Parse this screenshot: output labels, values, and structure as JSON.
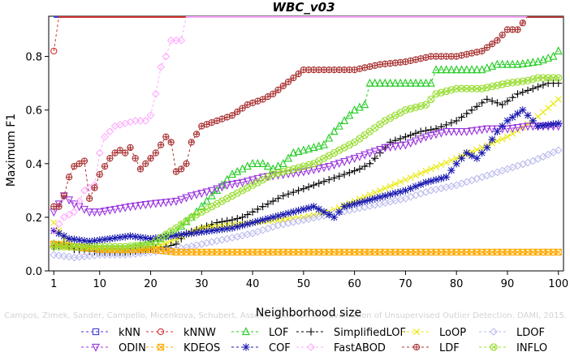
{
  "chart_data": {
    "type": "line",
    "title": "WBC_v03",
    "xlabel": "Neighborhood size",
    "ylabel": "Maximum F1",
    "xlim": [
      0,
      101
    ],
    "ylim": [
      0,
      0.95
    ],
    "x_ticks": [
      1,
      10,
      20,
      30,
      40,
      50,
      60,
      70,
      80,
      90,
      100
    ],
    "y_ticks": [
      0.0,
      0.2,
      0.4,
      0.6,
      0.8
    ],
    "grid": false,
    "legend_position": "bottom",
    "watermark": "Campos, Zimek, Sander, Campello, Micenkova, Schubert, Assent, Houle  On the Evaluation of Unsupervised Outlier Detection. DAMI, 2015.",
    "series": [
      {
        "name": "kNN",
        "color": "#3b3bd6",
        "marker": "square",
        "dash": "3,3",
        "points": [
          [
            1,
            0.95
          ],
          [
            100,
            0.95
          ]
        ]
      },
      {
        "name": "kNNW",
        "color": "#d03030",
        "marker": "circle",
        "dash": "3,3",
        "points": [
          [
            1,
            0.82
          ],
          [
            2,
            0.95
          ],
          [
            100,
            0.95
          ]
        ]
      },
      {
        "name": "LOF",
        "color": "#22cc22",
        "marker": "triangle-up",
        "dash": "3,3",
        "points": [
          [
            1,
            0.1
          ],
          [
            5,
            0.09
          ],
          [
            10,
            0.08
          ],
          [
            15,
            0.08
          ],
          [
            20,
            0.1
          ],
          [
            22,
            0.12
          ],
          [
            25,
            0.15
          ],
          [
            28,
            0.2
          ],
          [
            30,
            0.24
          ],
          [
            33,
            0.3
          ],
          [
            36,
            0.36
          ],
          [
            38,
            0.38
          ],
          [
            40,
            0.4
          ],
          [
            42,
            0.4
          ],
          [
            44,
            0.38
          ],
          [
            46,
            0.4
          ],
          [
            48,
            0.44
          ],
          [
            50,
            0.45
          ],
          [
            52,
            0.46
          ],
          [
            54,
            0.47
          ],
          [
            56,
            0.52
          ],
          [
            58,
            0.56
          ],
          [
            60,
            0.6
          ],
          [
            62,
            0.62
          ],
          [
            63,
            0.7
          ],
          [
            70,
            0.7
          ],
          [
            75,
            0.7
          ],
          [
            76,
            0.75
          ],
          [
            80,
            0.75
          ],
          [
            85,
            0.75
          ],
          [
            88,
            0.77
          ],
          [
            92,
            0.77
          ],
          [
            96,
            0.78
          ],
          [
            99,
            0.8
          ],
          [
            100,
            0.82
          ]
        ]
      },
      {
        "name": "SimplifiedLOF",
        "color": "#000000",
        "marker": "plus",
        "dash": "3,3",
        "points": [
          [
            1,
            0.09
          ],
          [
            3,
            0.1
          ],
          [
            5,
            0.08
          ],
          [
            10,
            0.07
          ],
          [
            15,
            0.07
          ],
          [
            20,
            0.08
          ],
          [
            23,
            0.09
          ],
          [
            25,
            0.1
          ],
          [
            27,
            0.14
          ],
          [
            30,
            0.16
          ],
          [
            33,
            0.18
          ],
          [
            36,
            0.19
          ],
          [
            38,
            0.2
          ],
          [
            40,
            0.22
          ],
          [
            43,
            0.25
          ],
          [
            46,
            0.28
          ],
          [
            49,
            0.3
          ],
          [
            52,
            0.32
          ],
          [
            55,
            0.34
          ],
          [
            58,
            0.36
          ],
          [
            61,
            0.38
          ],
          [
            63,
            0.4
          ],
          [
            65,
            0.44
          ],
          [
            67,
            0.48
          ],
          [
            70,
            0.5
          ],
          [
            73,
            0.52
          ],
          [
            76,
            0.53
          ],
          [
            80,
            0.56
          ],
          [
            83,
            0.6
          ],
          [
            86,
            0.64
          ],
          [
            89,
            0.62
          ],
          [
            92,
            0.66
          ],
          [
            95,
            0.68
          ],
          [
            98,
            0.7
          ],
          [
            100,
            0.7
          ]
        ]
      },
      {
        "name": "LoOP",
        "color": "#e8e800",
        "marker": "cross",
        "dash": "3,3",
        "points": [
          [
            1,
            0.18
          ],
          [
            3,
            0.12
          ],
          [
            5,
            0.09
          ],
          [
            10,
            0.08
          ],
          [
            15,
            0.07
          ],
          [
            20,
            0.08
          ],
          [
            25,
            0.12
          ],
          [
            30,
            0.16
          ],
          [
            35,
            0.17
          ],
          [
            40,
            0.18
          ],
          [
            45,
            0.19
          ],
          [
            50,
            0.2
          ],
          [
            55,
            0.22
          ],
          [
            60,
            0.26
          ],
          [
            65,
            0.3
          ],
          [
            70,
            0.34
          ],
          [
            75,
            0.38
          ],
          [
            80,
            0.42
          ],
          [
            85,
            0.46
          ],
          [
            90,
            0.5
          ],
          [
            95,
            0.56
          ],
          [
            100,
            0.64
          ]
        ]
      },
      {
        "name": "LDOF",
        "color": "#bbbbee",
        "marker": "diamond",
        "dash": "3,3",
        "points": [
          [
            1,
            0.06
          ],
          [
            5,
            0.05
          ],
          [
            10,
            0.06
          ],
          [
            15,
            0.06
          ],
          [
            20,
            0.07
          ],
          [
            25,
            0.08
          ],
          [
            30,
            0.1
          ],
          [
            35,
            0.12
          ],
          [
            40,
            0.14
          ],
          [
            45,
            0.17
          ],
          [
            50,
            0.19
          ],
          [
            55,
            0.21
          ],
          [
            60,
            0.23
          ],
          [
            65,
            0.25
          ],
          [
            70,
            0.27
          ],
          [
            75,
            0.3
          ],
          [
            80,
            0.32
          ],
          [
            85,
            0.35
          ],
          [
            90,
            0.38
          ],
          [
            95,
            0.41
          ],
          [
            100,
            0.45
          ]
        ]
      },
      {
        "name": "ODIN",
        "color": "#9933dd",
        "marker": "triangle-down",
        "dash": "3,3",
        "points": [
          [
            1,
            0.22
          ],
          [
            3,
            0.28
          ],
          [
            5,
            0.25
          ],
          [
            8,
            0.22
          ],
          [
            10,
            0.22
          ],
          [
            13,
            0.23
          ],
          [
            16,
            0.24
          ],
          [
            20,
            0.25
          ],
          [
            25,
            0.26
          ],
          [
            28,
            0.28
          ],
          [
            32,
            0.3
          ],
          [
            35,
            0.32
          ],
          [
            38,
            0.33
          ],
          [
            42,
            0.35
          ],
          [
            46,
            0.36
          ],
          [
            50,
            0.37
          ],
          [
            55,
            0.39
          ],
          [
            60,
            0.42
          ],
          [
            63,
            0.44
          ],
          [
            66,
            0.46
          ],
          [
            70,
            0.47
          ],
          [
            74,
            0.5
          ],
          [
            78,
            0.52
          ],
          [
            82,
            0.52
          ],
          [
            86,
            0.53
          ],
          [
            90,
            0.53
          ],
          [
            94,
            0.54
          ],
          [
            97,
            0.54
          ],
          [
            100,
            0.54
          ]
        ]
      },
      {
        "name": "KDEOS",
        "color": "#ffaa00",
        "marker": "square-x",
        "dash": "3,3",
        "points": [
          [
            1,
            0.1
          ],
          [
            5,
            0.09
          ],
          [
            10,
            0.08
          ],
          [
            15,
            0.08
          ],
          [
            20,
            0.08
          ],
          [
            25,
            0.07
          ],
          [
            30,
            0.07
          ],
          [
            40,
            0.07
          ],
          [
            50,
            0.07
          ],
          [
            60,
            0.07
          ],
          [
            70,
            0.07
          ],
          [
            80,
            0.07
          ],
          [
            90,
            0.07
          ],
          [
            100,
            0.07
          ]
        ]
      },
      {
        "name": "COF",
        "color": "#1a1ab0",
        "marker": "asterisk",
        "dash": "3,3",
        "points": [
          [
            1,
            0.15
          ],
          [
            4,
            0.12
          ],
          [
            8,
            0.11
          ],
          [
            12,
            0.12
          ],
          [
            16,
            0.13
          ],
          [
            20,
            0.12
          ],
          [
            24,
            0.13
          ],
          [
            28,
            0.14
          ],
          [
            32,
            0.15
          ],
          [
            36,
            0.16
          ],
          [
            40,
            0.18
          ],
          [
            44,
            0.2
          ],
          [
            48,
            0.22
          ],
          [
            52,
            0.24
          ],
          [
            54,
            0.22
          ],
          [
            56,
            0.2
          ],
          [
            58,
            0.24
          ],
          [
            62,
            0.26
          ],
          [
            66,
            0.28
          ],
          [
            70,
            0.3
          ],
          [
            74,
            0.33
          ],
          [
            78,
            0.35
          ],
          [
            80,
            0.4
          ],
          [
            82,
            0.44
          ],
          [
            84,
            0.42
          ],
          [
            86,
            0.46
          ],
          [
            88,
            0.52
          ],
          [
            90,
            0.56
          ],
          [
            93,
            0.6
          ],
          [
            96,
            0.54
          ],
          [
            100,
            0.55
          ]
        ]
      },
      {
        "name": "FastABOD",
        "color": "#ffaaff",
        "marker": "diamond",
        "dash": "3,3",
        "points": [
          [
            1,
            0.15
          ],
          [
            3,
            0.2
          ],
          [
            5,
            0.22
          ],
          [
            7,
            0.3
          ],
          [
            9,
            0.32
          ],
          [
            10,
            0.44
          ],
          [
            11,
            0.5
          ],
          [
            13,
            0.54
          ],
          [
            15,
            0.55
          ],
          [
            17,
            0.56
          ],
          [
            19,
            0.56
          ],
          [
            20,
            0.58
          ],
          [
            21,
            0.66
          ],
          [
            22,
            0.76
          ],
          [
            23,
            0.8
          ],
          [
            24,
            0.86
          ],
          [
            26,
            0.86
          ],
          [
            27,
            0.95
          ],
          [
            100,
            0.95
          ]
        ]
      },
      {
        "name": "LDF",
        "color": "#aa3333",
        "marker": "circle-plus",
        "dash": "3,3",
        "points": [
          [
            1,
            0.24
          ],
          [
            2,
            0.24
          ],
          [
            3,
            0.28
          ],
          [
            4,
            0.35
          ],
          [
            5,
            0.39
          ],
          [
            6,
            0.4
          ],
          [
            7,
            0.41
          ],
          [
            8,
            0.27
          ],
          [
            9,
            0.31
          ],
          [
            10,
            0.36
          ],
          [
            11,
            0.39
          ],
          [
            12,
            0.42
          ],
          [
            13,
            0.44
          ],
          [
            14,
            0.45
          ],
          [
            15,
            0.44
          ],
          [
            16,
            0.46
          ],
          [
            17,
            0.42
          ],
          [
            18,
            0.38
          ],
          [
            19,
            0.4
          ],
          [
            20,
            0.42
          ],
          [
            21,
            0.44
          ],
          [
            22,
            0.47
          ],
          [
            23,
            0.5
          ],
          [
            24,
            0.48
          ],
          [
            25,
            0.37
          ],
          [
            26,
            0.38
          ],
          [
            27,
            0.4
          ],
          [
            28,
            0.48
          ],
          [
            30,
            0.54
          ],
          [
            33,
            0.56
          ],
          [
            36,
            0.58
          ],
          [
            39,
            0.62
          ],
          [
            42,
            0.64
          ],
          [
            44,
            0.66
          ],
          [
            46,
            0.69
          ],
          [
            48,
            0.72
          ],
          [
            50,
            0.75
          ],
          [
            55,
            0.75
          ],
          [
            60,
            0.75
          ],
          [
            65,
            0.77
          ],
          [
            70,
            0.78
          ],
          [
            75,
            0.8
          ],
          [
            80,
            0.8
          ],
          [
            85,
            0.82
          ],
          [
            88,
            0.86
          ],
          [
            90,
            0.9
          ],
          [
            92,
            0.9
          ],
          [
            94,
            0.95
          ],
          [
            100,
            0.95
          ]
        ]
      },
      {
        "name": "INFLO",
        "color": "#99dd33",
        "marker": "circle-x",
        "dash": "3,3",
        "points": [
          [
            1,
            0.09
          ],
          [
            5,
            0.09
          ],
          [
            10,
            0.09
          ],
          [
            15,
            0.09
          ],
          [
            20,
            0.1
          ],
          [
            25,
            0.16
          ],
          [
            28,
            0.2
          ],
          [
            32,
            0.24
          ],
          [
            36,
            0.28
          ],
          [
            40,
            0.32
          ],
          [
            44,
            0.36
          ],
          [
            48,
            0.38
          ],
          [
            52,
            0.4
          ],
          [
            56,
            0.44
          ],
          [
            60,
            0.48
          ],
          [
            63,
            0.52
          ],
          [
            66,
            0.56
          ],
          [
            70,
            0.6
          ],
          [
            74,
            0.62
          ],
          [
            76,
            0.66
          ],
          [
            80,
            0.68
          ],
          [
            85,
            0.68
          ],
          [
            90,
            0.7
          ],
          [
            94,
            0.71
          ],
          [
            96,
            0.72
          ],
          [
            100,
            0.72
          ]
        ]
      }
    ]
  }
}
